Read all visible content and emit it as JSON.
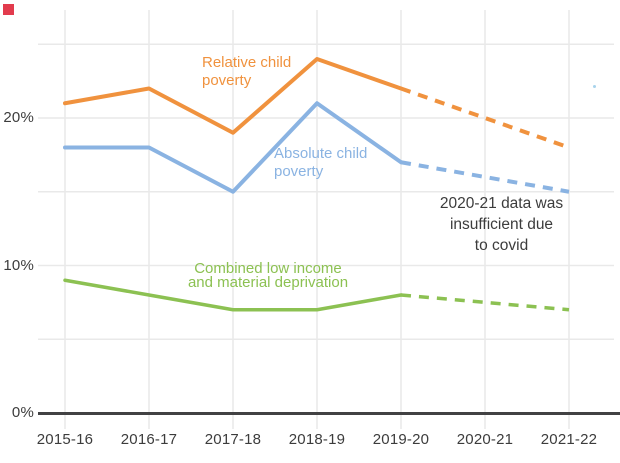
{
  "page": {
    "background": "#ffffff"
  },
  "corner_marker": {
    "color": "#e23b4d"
  },
  "chart_data": {
    "type": "line",
    "title": "",
    "xlabel": "",
    "ylabel": "",
    "categories": [
      "2015-16",
      "2016-17",
      "2017-18",
      "2018-19",
      "2019-20",
      "2020-21",
      "2021-22"
    ],
    "y_tick_labels": [
      {
        "text": "0%",
        "value": 0
      },
      {
        "text": "10%",
        "value": 10
      },
      {
        "text": "20%",
        "value": 20
      }
    ],
    "ylim": [
      0,
      27.3
    ],
    "grid": {
      "y_step_pct": 5,
      "y_top_gridline_pct": 25,
      "show_vertical": true,
      "gridline_color": "#e9e9e9",
      "axis_color": "#414143"
    },
    "legend_position": "inline-labels",
    "series": [
      {
        "name": "Relative child poverty",
        "color": "#f0923e",
        "values": [
          21,
          22,
          19,
          24,
          22,
          20,
          18
        ],
        "dashed_from_index": 4,
        "stroke_width": 4,
        "label_lines": [
          "Relative child",
          "poverty"
        ]
      },
      {
        "name": "Absolute child poverty",
        "color": "#8ab3e2",
        "values": [
          18,
          18,
          15,
          21,
          17,
          16,
          15
        ],
        "dashed_from_index": 4,
        "stroke_width": 4,
        "label_lines": [
          "Absolute child",
          "poverty"
        ]
      },
      {
        "name": "Combined low income and material deprivation",
        "color": "#8cc152",
        "values": [
          9,
          8,
          7,
          7,
          8,
          7.5,
          7
        ],
        "dashed_from_index": 4,
        "stroke_width": 3.5,
        "label_lines": [
          "Combined low income",
          "and material deprivation"
        ]
      }
    ],
    "annotation": {
      "lines": [
        "2020-21 data was",
        "insufficient due",
        "to covid"
      ]
    }
  }
}
